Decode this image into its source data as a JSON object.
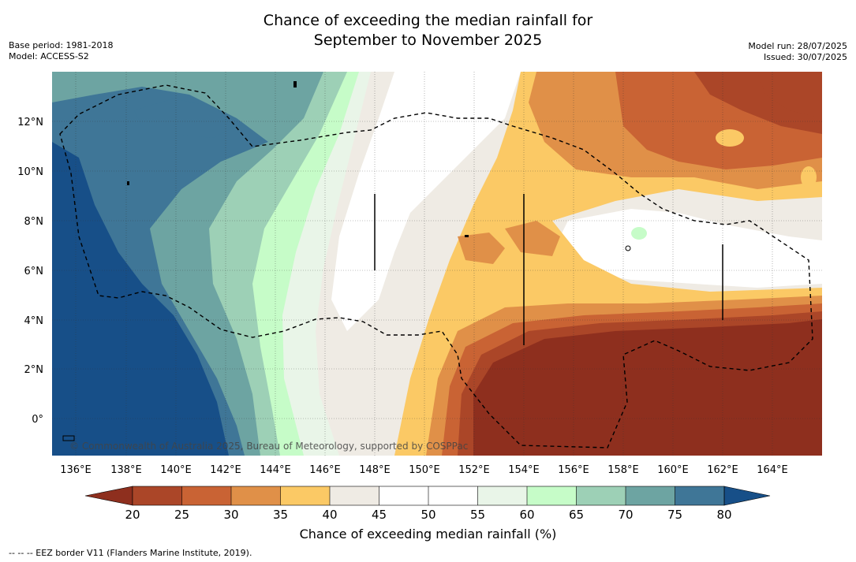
{
  "title_line1": "Chance of exceeding the median rainfall for",
  "title_line2": "September to November 2025",
  "base_period": "Base period: 1981-2018",
  "model": "Model: ACCESS-S2",
  "model_run": "Model run: 28/07/2025",
  "issued": "Issued: 30/07/2025",
  "copyright": "© Commonwealth of Australia 2025, Bureau of Meteorology, supported by COSPPac",
  "x_ticks": [
    "136°E",
    "138°E",
    "140°E",
    "142°E",
    "144°E",
    "146°E",
    "148°E",
    "150°E",
    "152°E",
    "154°E",
    "156°E",
    "158°E",
    "160°E",
    "162°E",
    "164°E"
  ],
  "y_ticks": [
    "12°N",
    "10°N",
    "8°N",
    "6°N",
    "4°N",
    "2°N",
    "0°"
  ],
  "colorbar": {
    "title": "Chance of exceeding median rainfall (%)",
    "labels": [
      "20",
      "25",
      "30",
      "35",
      "40",
      "45",
      "50",
      "55",
      "60",
      "65",
      "70",
      "75",
      "80"
    ],
    "colors": [
      "#8e2f1e",
      "#ab4628",
      "#c96334",
      "#e09048",
      "#fbc965",
      "#efebe4",
      "#ffffff",
      "#ffffff",
      "#e9f5e8",
      "#c6fcc8",
      "#9dd0b6",
      "#6da4a2",
      "#3f7697",
      "#174f88"
    ]
  },
  "footnote": "--  --  -- EEZ border V11 (Flanders Marine Institute, 2019)."
}
